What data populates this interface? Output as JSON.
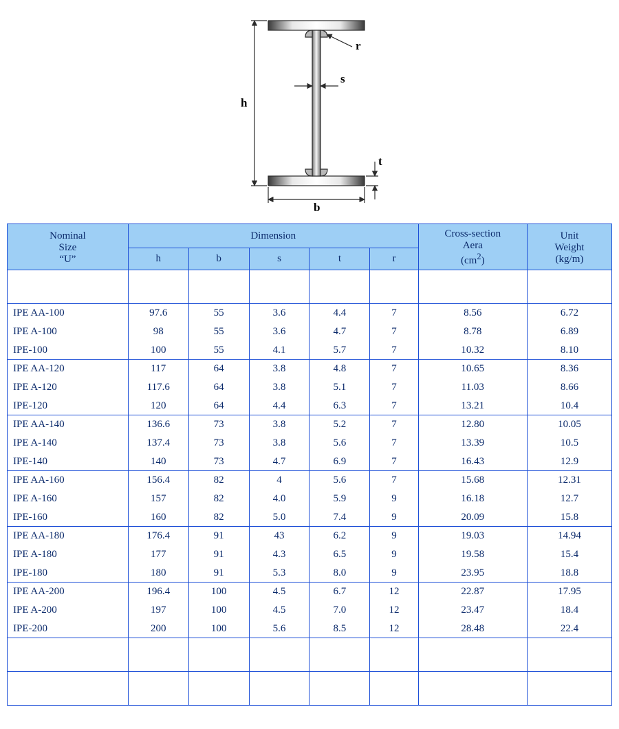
{
  "diagram": {
    "labels": {
      "h": "h",
      "b": "b",
      "s": "s",
      "t": "t",
      "r": "r"
    },
    "colors": {
      "stroke": "#2b2b2b",
      "fill_steel_dark": "#4a4a4a",
      "fill_steel_mid": "#cfcfcf",
      "fill_steel_light": "#ffffff",
      "label": "#000000",
      "bg": "#ffffff"
    },
    "line_width": 1.5,
    "font": {
      "family": "Georgia, serif",
      "size_pt": 15,
      "weight": "bold"
    }
  },
  "table": {
    "colors": {
      "header_bg": "#9ecff5",
      "border": "#1d4fd7",
      "text": "#0b2a6b",
      "bg": "#ffffff"
    },
    "font": {
      "family": "Georgia, \"Times New Roman\", serif",
      "size_pt": 15
    },
    "columns": [
      {
        "key": "name",
        "width_pct": 20,
        "align": "left"
      },
      {
        "key": "h",
        "width_pct": 10,
        "align": "center"
      },
      {
        "key": "b",
        "width_pct": 10,
        "align": "center"
      },
      {
        "key": "s",
        "width_pct": 10,
        "align": "center"
      },
      {
        "key": "t",
        "width_pct": 10,
        "align": "center"
      },
      {
        "key": "r",
        "width_pct": 8,
        "align": "center"
      },
      {
        "key": "area",
        "width_pct": 18,
        "align": "center"
      },
      {
        "key": "weight",
        "width_pct": 14,
        "align": "center"
      }
    ],
    "headers": {
      "nominal_line1": "Nominal",
      "nominal_line2": "Size",
      "nominal_line3": "“U”",
      "dimension": "Dimension",
      "h": "h",
      "b": "b",
      "s": "s",
      "t": "t",
      "r": "r",
      "area_line1": "Cross-section",
      "area_line2": "Aera",
      "area_line3_prefix": "(cm",
      "area_line3_sup": "2",
      "area_line3_suffix": ")",
      "weight_line1": "Unit",
      "weight_line2": "Weight",
      "weight_line3": "(kg/m)"
    },
    "groups": [
      [
        {
          "name": "IPE AA-100",
          "h": "97.6",
          "b": "55",
          "s": "3.6",
          "t": "4.4",
          "r": "7",
          "area": "8.56",
          "weight": "6.72"
        },
        {
          "name": "IPE A-100",
          "h": "98",
          "b": "55",
          "s": "3.6",
          "t": "4.7",
          "r": "7",
          "area": "8.78",
          "weight": "6.89"
        },
        {
          "name": "IPE-100",
          "h": "100",
          "b": "55",
          "s": "4.1",
          "t": "5.7",
          "r": "7",
          "area": "10.32",
          "weight": "8.10"
        }
      ],
      [
        {
          "name": "IPE AA-120",
          "h": "117",
          "b": "64",
          "s": "3.8",
          "t": "4.8",
          "r": "7",
          "area": "10.65",
          "weight": "8.36"
        },
        {
          "name": "IPE A-120",
          "h": "117.6",
          "b": "64",
          "s": "3.8",
          "t": "5.1",
          "r": "7",
          "area": "11.03",
          "weight": "8.66"
        },
        {
          "name": "IPE-120",
          "h": "120",
          "b": "64",
          "s": "4.4",
          "t": "6.3",
          "r": "7",
          "area": "13.21",
          "weight": "10.4"
        }
      ],
      [
        {
          "name": "IPE AA-140",
          "h": "136.6",
          "b": "73",
          "s": "3.8",
          "t": "5.2",
          "r": "7",
          "area": "12.80",
          "weight": "10.05"
        },
        {
          "name": "IPE A-140",
          "h": "137.4",
          "b": "73",
          "s": "3.8",
          "t": "5.6",
          "r": "7",
          "area": "13.39",
          "weight": "10.5"
        },
        {
          "name": "IPE-140",
          "h": "140",
          "b": "73",
          "s": "4.7",
          "t": "6.9",
          "r": "7",
          "area": "16.43",
          "weight": "12.9"
        }
      ],
      [
        {
          "name": "IPE AA-160",
          "h": "156.4",
          "b": "82",
          "s": "4",
          "t": "5.6",
          "r": "7",
          "area": "15.68",
          "weight": "12.31"
        },
        {
          "name": "IPE A-160",
          "h": "157",
          "b": "82",
          "s": "4.0",
          "t": "5.9",
          "r": "9",
          "area": "16.18",
          "weight": "12.7"
        },
        {
          "name": "IPE-160",
          "h": "160",
          "b": "82",
          "s": "5.0",
          "t": "7.4",
          "r": "9",
          "area": "20.09",
          "weight": "15.8"
        }
      ],
      [
        {
          "name": "IPE AA-180",
          "h": "176.4",
          "b": "91",
          "s": "43",
          "t": "6.2",
          "r": "9",
          "area": "19.03",
          "weight": "14.94"
        },
        {
          "name": "IPE A-180",
          "h": "177",
          "b": "91",
          "s": "4.3",
          "t": "6.5",
          "r": "9",
          "area": "19.58",
          "weight": "15.4"
        },
        {
          "name": "IPE-180",
          "h": "180",
          "b": "91",
          "s": "5.3",
          "t": "8.0",
          "r": "9",
          "area": "23.95",
          "weight": "18.8"
        }
      ],
      [
        {
          "name": "IPE AA-200",
          "h": "196.4",
          "b": "100",
          "s": "4.5",
          "t": "6.7",
          "r": "12",
          "area": "22.87",
          "weight": "17.95"
        },
        {
          "name": "IPE A-200",
          "h": "197",
          "b": "100",
          "s": "4.5",
          "t": "7.0",
          "r": "12",
          "area": "23.47",
          "weight": "18.4"
        },
        {
          "name": "IPE-200",
          "h": "200",
          "b": "100",
          "s": "5.6",
          "t": "8.5",
          "r": "12",
          "area": "28.48",
          "weight": "22.4"
        }
      ]
    ]
  }
}
